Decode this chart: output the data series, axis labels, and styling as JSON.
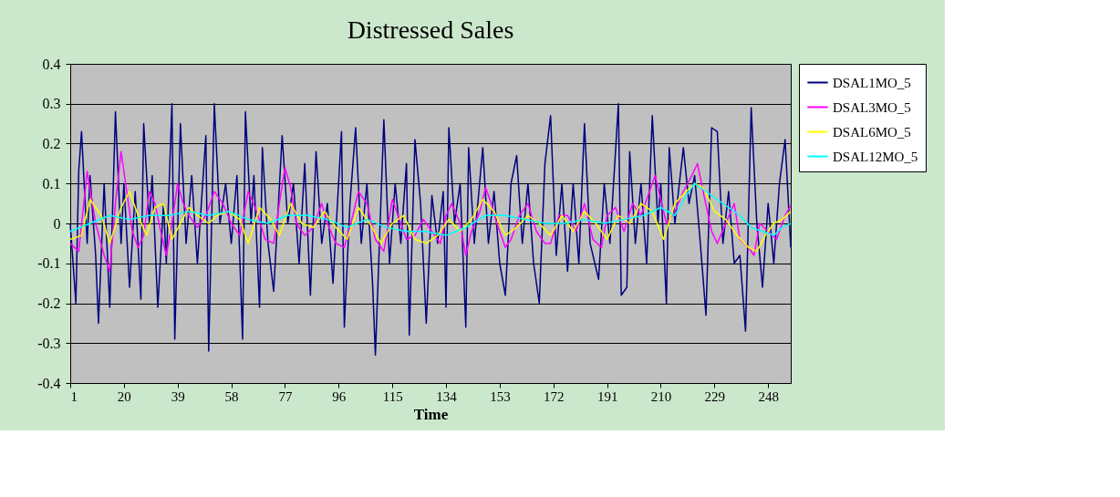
{
  "chart_data": {
    "type": "line",
    "title": "Distressed Sales",
    "xlabel": "Time",
    "xlim": [
      1,
      256
    ],
    "xticks": [
      1,
      20,
      39,
      58,
      77,
      96,
      115,
      134,
      153,
      172,
      191,
      210,
      229,
      248
    ],
    "ylim": [
      -0.4,
      0.4
    ],
    "yticks": [
      -0.4,
      -0.3,
      -0.2,
      -0.1,
      0,
      0.1,
      0.2,
      0.3,
      0.4
    ],
    "grid": "y",
    "legend": "right",
    "marker": "none",
    "line_style": "solid",
    "series": [
      {
        "name": "DSAL1MO_5",
        "color": "#000080",
        "x": [
          1,
          3,
          4,
          5,
          7,
          8,
          10,
          11,
          13,
          15,
          17,
          19,
          20,
          22,
          24,
          26,
          27,
          29,
          30,
          32,
          34,
          35,
          37,
          38,
          40,
          42,
          44,
          46,
          49,
          50,
          52,
          54,
          56,
          58,
          60,
          62,
          63,
          65,
          66,
          68,
          69,
          71,
          73,
          76,
          78,
          80,
          82,
          84,
          86,
          88,
          90,
          92,
          94,
          97,
          98,
          100,
          102,
          104,
          106,
          108,
          109,
          112,
          114,
          116,
          118,
          120,
          121,
          123,
          125,
          127,
          129,
          131,
          133,
          134,
          135,
          137,
          139,
          141,
          142,
          144,
          147,
          149,
          151,
          153,
          155,
          157,
          159,
          161,
          163,
          165,
          167,
          169,
          171,
          173,
          175,
          177,
          179,
          181,
          183,
          185,
          188,
          190,
          192,
          195,
          196,
          198,
          199,
          201,
          203,
          205,
          207,
          209,
          210,
          212,
          213,
          215,
          218,
          220,
          222,
          224,
          226,
          228,
          230,
          232,
          234,
          236,
          238,
          240,
          242,
          244,
          246,
          248,
          250,
          252,
          254,
          256
        ],
        "values": [
          0.0,
          -0.2,
          0.13,
          0.23,
          -0.05,
          0.12,
          -0.08,
          -0.25,
          0.1,
          -0.21,
          0.28,
          -0.05,
          0.1,
          -0.16,
          0.08,
          -0.19,
          0.25,
          0.0,
          0.12,
          -0.21,
          0.05,
          -0.1,
          0.3,
          -0.29,
          0.25,
          -0.05,
          0.12,
          -0.1,
          0.22,
          -0.32,
          0.3,
          0.0,
          0.1,
          -0.05,
          0.12,
          -0.29,
          0.28,
          0.0,
          0.12,
          -0.21,
          0.19,
          -0.05,
          -0.17,
          0.22,
          0.0,
          0.1,
          -0.1,
          0.15,
          -0.18,
          0.18,
          -0.05,
          0.05,
          -0.15,
          0.23,
          -0.26,
          0.05,
          0.24,
          -0.05,
          0.1,
          -0.15,
          -0.33,
          0.26,
          -0.1,
          0.1,
          -0.05,
          0.15,
          -0.28,
          0.21,
          0.05,
          -0.25,
          0.07,
          -0.05,
          0.08,
          -0.21,
          0.24,
          0.0,
          0.1,
          -0.26,
          0.19,
          -0.05,
          0.19,
          -0.05,
          0.08,
          -0.1,
          -0.18,
          0.1,
          0.17,
          -0.05,
          0.1,
          -0.1,
          -0.2,
          0.15,
          0.27,
          -0.08,
          0.1,
          -0.12,
          0.1,
          -0.1,
          0.25,
          -0.05,
          -0.14,
          0.1,
          -0.05,
          0.3,
          -0.18,
          -0.16,
          0.18,
          -0.05,
          0.1,
          -0.1,
          0.27,
          0.0,
          0.1,
          -0.2,
          0.19,
          0.0,
          0.19,
          0.05,
          0.12,
          -0.05,
          -0.23,
          0.24,
          0.23,
          -0.05,
          0.08,
          -0.1,
          -0.08,
          -0.27,
          0.29,
          0.0,
          -0.16,
          0.05,
          -0.1,
          0.1,
          0.21,
          -0.06
        ]
      },
      {
        "name": "DSAL3MO_5",
        "color": "#ff00ff",
        "x": [
          1,
          4,
          7,
          10,
          13,
          15,
          17,
          19,
          21,
          23,
          25,
          27,
          29,
          31,
          33,
          35,
          37,
          39,
          41,
          43,
          46,
          49,
          52,
          55,
          58,
          61,
          64,
          67,
          70,
          73,
          75,
          77,
          79,
          81,
          84,
          87,
          90,
          92,
          95,
          98,
          101,
          103,
          106,
          109,
          112,
          115,
          117,
          120,
          123,
          126,
          129,
          132,
          134,
          136,
          139,
          141,
          143,
          146,
          148,
          150,
          152,
          155,
          157,
          160,
          163,
          166,
          169,
          171,
          174,
          177,
          180,
          183,
          186,
          189,
          191,
          194,
          197,
          200,
          203,
          206,
          208,
          210,
          212,
          215,
          218,
          221,
          223,
          225,
          228,
          230,
          233,
          236,
          238,
          241,
          243,
          245,
          248,
          251,
          254,
          256
        ],
        "values": [
          -0.05,
          -0.07,
          0.13,
          0.0,
          -0.08,
          -0.12,
          0.05,
          0.18,
          0.08,
          -0.02,
          -0.06,
          -0.03,
          0.08,
          0.05,
          -0.02,
          -0.08,
          0.0,
          0.1,
          0.05,
          0.02,
          -0.01,
          0.02,
          0.08,
          0.05,
          0.0,
          -0.03,
          0.08,
          0.03,
          -0.04,
          -0.05,
          0.05,
          0.14,
          0.09,
          0.0,
          -0.03,
          -0.01,
          0.05,
          0.0,
          -0.05,
          -0.06,
          0.02,
          0.08,
          0.05,
          -0.04,
          -0.07,
          0.06,
          0.02,
          -0.04,
          -0.03,
          0.01,
          -0.02,
          -0.05,
          0.02,
          0.05,
          0.0,
          -0.08,
          -0.02,
          0.03,
          0.09,
          0.05,
          0.0,
          -0.06,
          -0.04,
          0.02,
          0.05,
          -0.02,
          -0.05,
          -0.05,
          0.02,
          0.02,
          -0.02,
          0.05,
          -0.04,
          -0.06,
          0.02,
          0.04,
          -0.02,
          0.05,
          0.02,
          0.08,
          0.12,
          0.06,
          0.0,
          0.03,
          0.08,
          0.12,
          0.15,
          0.08,
          -0.02,
          -0.05,
          0.0,
          0.05,
          -0.04,
          -0.06,
          -0.08,
          0.0,
          -0.02,
          -0.04,
          0.02,
          0.045
        ]
      },
      {
        "name": "DSAL6MO_5",
        "color": "#ffff00",
        "x": [
          1,
          5,
          8,
          12,
          15,
          19,
          22,
          25,
          28,
          31,
          34,
          37,
          40,
          43,
          46,
          50,
          53,
          57,
          61,
          64,
          68,
          72,
          75,
          79,
          83,
          87,
          91,
          95,
          99,
          103,
          107,
          111,
          115,
          119,
          123,
          127,
          131,
          135,
          139,
          143,
          147,
          151,
          155,
          159,
          163,
          167,
          171,
          175,
          179,
          183,
          187,
          191,
          195,
          199,
          203,
          207,
          211,
          215,
          219,
          222,
          225,
          229,
          233,
          237,
          241,
          244,
          247,
          250,
          253,
          256
        ],
        "values": [
          -0.04,
          -0.03,
          0.06,
          0.02,
          -0.05,
          0.04,
          0.08,
          0.02,
          -0.03,
          0.04,
          0.05,
          -0.04,
          0.0,
          0.04,
          0.02,
          0.0,
          0.02,
          0.03,
          0.01,
          -0.05,
          0.04,
          0.01,
          -0.03,
          0.05,
          0.0,
          -0.01,
          0.03,
          -0.01,
          -0.04,
          0.04,
          0.0,
          -0.05,
          0.0,
          0.02,
          -0.04,
          -0.05,
          -0.03,
          0.01,
          -0.02,
          0.01,
          0.06,
          0.03,
          -0.03,
          -0.01,
          0.02,
          0.0,
          -0.03,
          0.02,
          -0.02,
          0.03,
          0.0,
          -0.04,
          0.02,
          0.0,
          0.05,
          0.03,
          -0.04,
          0.05,
          0.08,
          0.1,
          0.09,
          0.03,
          0.01,
          -0.03,
          -0.06,
          -0.07,
          -0.03,
          0.0,
          0.01,
          0.03
        ]
      },
      {
        "name": "DSAL12MO_5",
        "color": "#00ffff",
        "x": [
          1,
          8,
          15,
          22,
          29,
          36,
          43,
          50,
          57,
          64,
          71,
          78,
          85,
          92,
          99,
          106,
          113,
          120,
          127,
          134,
          141,
          148,
          155,
          162,
          169,
          176,
          183,
          190,
          197,
          204,
          210,
          215,
          219,
          222,
          226,
          230,
          234,
          238,
          242,
          246,
          250,
          253,
          256
        ],
        "values": [
          -0.02,
          0.0,
          0.02,
          0.01,
          0.02,
          0.02,
          0.03,
          0.02,
          0.03,
          0.01,
          0.0,
          0.02,
          0.02,
          0.01,
          -0.01,
          0.01,
          -0.01,
          -0.02,
          -0.02,
          -0.03,
          -0.01,
          0.02,
          0.02,
          0.01,
          0.0,
          0.0,
          0.01,
          0.0,
          0.01,
          0.02,
          0.04,
          0.02,
          0.07,
          0.1,
          0.08,
          0.06,
          0.04,
          0.02,
          -0.01,
          -0.02,
          -0.03,
          -0.01,
          0.0
        ]
      }
    ]
  }
}
